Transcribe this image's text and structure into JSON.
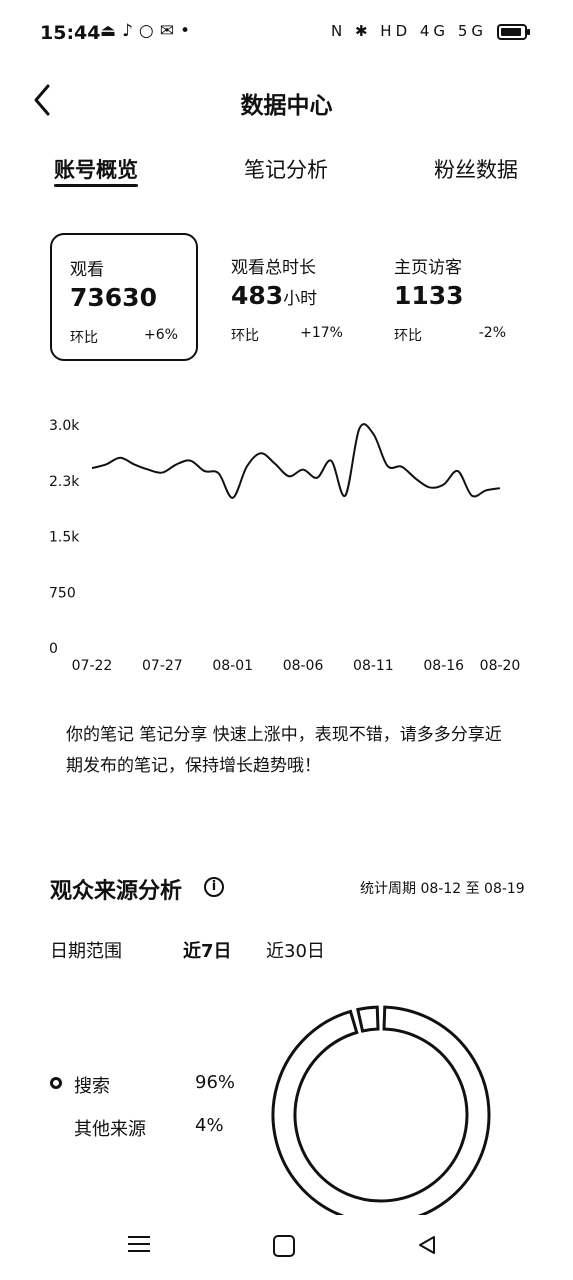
{
  "status_bar": {
    "time": "15:44",
    "left_icons": [
      "upload-icon",
      "tiktok-icon",
      "record-icon",
      "wechat-icon",
      "dot-icon"
    ],
    "right_text": "N ✱ HD 4G 5G"
  },
  "header": {
    "title": "数据中心",
    "back_icon": "chevron-left-icon"
  },
  "tabs": [
    {
      "label": "账号概览",
      "active": true
    },
    {
      "label": "笔记分析",
      "active": false
    },
    {
      "label": "粉丝数据",
      "active": false
    }
  ],
  "metrics": [
    {
      "label": "观看",
      "value": "73630",
      "unit": "",
      "compare_label": "环比",
      "compare_value": "+6%",
      "selected": true
    },
    {
      "label": "观看总时长",
      "value": "483",
      "unit": "小时",
      "compare_label": "环比",
      "compare_value": "+17%",
      "selected": false
    },
    {
      "label": "主页访客",
      "value": "1133",
      "unit": "",
      "compare_label": "环比",
      "compare_value": "-2%",
      "selected": false
    }
  ],
  "chart_data": {
    "type": "line",
    "y_ticks": [
      "0",
      "750",
      "1.5k",
      "2.3k",
      "3.0k"
    ],
    "ylim": [
      0,
      3000
    ],
    "x_ticks": [
      "07-22",
      "07-27",
      "08-01",
      "08-06",
      "08-11",
      "08-16",
      "08-20"
    ],
    "series": [
      {
        "x": [
          "07-22",
          "07-23",
          "07-24",
          "07-25",
          "07-26",
          "07-27",
          "07-28",
          "07-29",
          "07-30",
          "07-31",
          "08-01",
          "08-02",
          "08-03",
          "08-04",
          "08-05",
          "08-06",
          "08-07",
          "08-08",
          "08-09",
          "08-10",
          "08-11",
          "08-12",
          "08-13",
          "08-14",
          "08-15",
          "08-16",
          "08-17",
          "08-18",
          "08-19",
          "08-20"
        ],
        "values": [
          2420,
          2470,
          2560,
          2470,
          2400,
          2360,
          2470,
          2520,
          2380,
          2350,
          2020,
          2440,
          2620,
          2480,
          2310,
          2400,
          2290,
          2520,
          2050,
          2950,
          2880,
          2450,
          2440,
          2280,
          2160,
          2200,
          2380,
          2050,
          2120,
          2150
        ]
      }
    ],
    "grid": false
  },
  "insight": "你的笔记 笔记分享 快速上涨中，表现不错，请多多分享近期发布的笔记，保持增长趋势哦！",
  "audience": {
    "title": "观众来源分析",
    "info_icon": "info-icon",
    "info_glyph": "i",
    "period": "统计周期 08-12 至 08-19",
    "range_label": "日期范围",
    "range_options": [
      {
        "label": "近7日",
        "active": true
      },
      {
        "label": "近30日",
        "active": false
      }
    ],
    "sources": [
      {
        "name": "搜索",
        "pct": "96%",
        "share": 0.96
      },
      {
        "name": "其他来源",
        "pct": "4%",
        "share": 0.04
      }
    ]
  },
  "nav_bar": {
    "icons": [
      "menu-icon",
      "home-square-icon",
      "back-triangle-icon"
    ]
  }
}
